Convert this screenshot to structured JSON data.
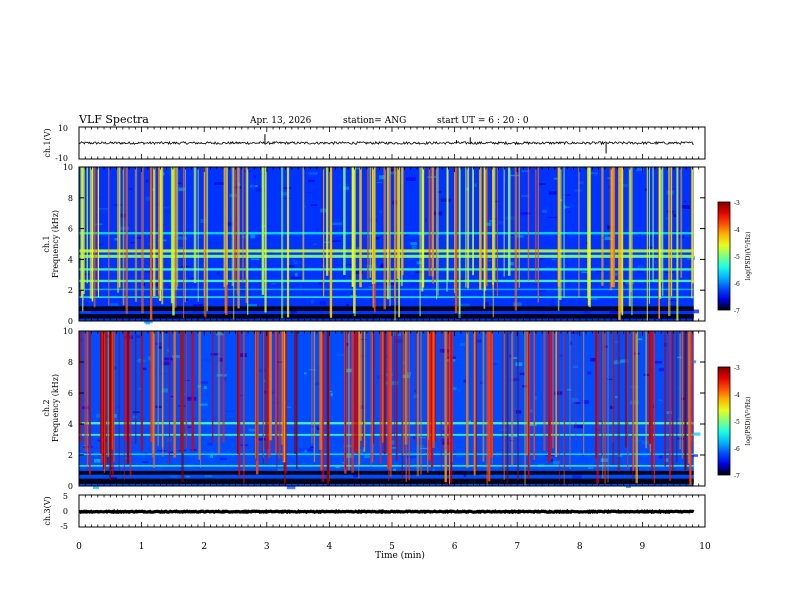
{
  "chart_data": {
    "type": "heatmap",
    "header": {
      "title": "VLF Spectra",
      "date": "Apr. 13, 2026",
      "station": "station= ANG",
      "start": "start  UT =   6  : 20 : 0"
    },
    "xlabel": "Time  (min)",
    "xlim": [
      0,
      10
    ],
    "x_ticks": [
      "0",
      "1",
      "2",
      "3",
      "4",
      "5",
      "6",
      "7",
      "8",
      "9",
      "10"
    ],
    "data_end_min": 9.82,
    "panels": [
      {
        "id": "ch1-waveform",
        "type": "line",
        "ylabel": "ch.1(V)",
        "ylim": [
          -10,
          10
        ],
        "y_ticks": [
          "10",
          "-10"
        ],
        "baseline": 0,
        "noise_amplitude": 0.8,
        "spikes": [
          {
            "t": 2.97,
            "v": 5.5
          },
          {
            "t": 6.03,
            "v": 1.8
          },
          {
            "t": 6.25,
            "v": 3.5
          },
          {
            "t": 8.42,
            "v": -6.5
          }
        ]
      },
      {
        "id": "ch1-spectrogram",
        "type": "heatmap",
        "ylabel_top": "ch.1",
        "ylabel": "Frequency  (kHz)",
        "ylim": [
          0,
          10
        ],
        "y_ticks": [
          "0",
          "2",
          "4",
          "6",
          "8",
          "10"
        ],
        "background_level": -6.3,
        "sferic_level": -4.6,
        "sferic_count": 150,
        "bands": [
          {
            "f": 0.3,
            "w": 0.3,
            "level": -7.0
          },
          {
            "f": 0.8,
            "w": 0.3,
            "level": -6.9
          },
          {
            "f": 1.55,
            "w": 0.1,
            "level": -5.4
          },
          {
            "f": 2.05,
            "w": 0.1,
            "level": -5.8
          },
          {
            "f": 2.6,
            "w": 0.15,
            "level": -5.2
          },
          {
            "f": 3.35,
            "w": 0.15,
            "level": -5.3
          },
          {
            "f": 4.2,
            "w": 0.2,
            "level": -5.0
          },
          {
            "f": 4.55,
            "w": 0.2,
            "level": -4.8
          },
          {
            "f": 5.7,
            "w": 0.15,
            "level": -5.6
          }
        ]
      },
      {
        "id": "ch2-spectrogram",
        "type": "heatmap",
        "ylabel_top": "ch.2",
        "ylabel": "Frequency  (kHz)",
        "ylim": [
          0,
          10
        ],
        "y_ticks": [
          "0",
          "2",
          "4",
          "6",
          "8",
          "10"
        ],
        "background_level": -6.2,
        "sferic_level": -3.8,
        "sferic_count": 190,
        "bands": [
          {
            "f": 0.3,
            "w": 0.35,
            "level": -7.0
          },
          {
            "f": 0.85,
            "w": 0.25,
            "level": -6.9
          },
          {
            "f": 1.3,
            "w": 0.1,
            "level": -5.3
          },
          {
            "f": 2.05,
            "w": 0.1,
            "level": -5.6
          },
          {
            "f": 3.3,
            "w": 0.12,
            "level": -5.3
          },
          {
            "f": 4.05,
            "w": 0.15,
            "level": -5.2
          }
        ]
      },
      {
        "id": "ch3-waveform",
        "type": "line",
        "ylabel": "ch.3(V)",
        "ylim": [
          -5,
          5
        ],
        "y_ticks": [
          "5",
          "0",
          "-5"
        ],
        "baseline": -0.2,
        "noise_amplitude": 0.15,
        "spikes": []
      }
    ],
    "colorbars": [
      {
        "panel": "ch1-spectrogram",
        "label": "log(PSD)(V²/Hz)",
        "range": [
          -7,
          -3
        ],
        "ticks": [
          "-3",
          "-4",
          "-5",
          "-6",
          "-7"
        ]
      },
      {
        "panel": "ch2-spectrogram",
        "label": "log(PSD)(V²/Hz)",
        "range": [
          -7,
          -3
        ],
        "ticks": [
          "-3",
          "-4",
          "-5",
          "-6",
          "-7"
        ]
      }
    ]
  }
}
